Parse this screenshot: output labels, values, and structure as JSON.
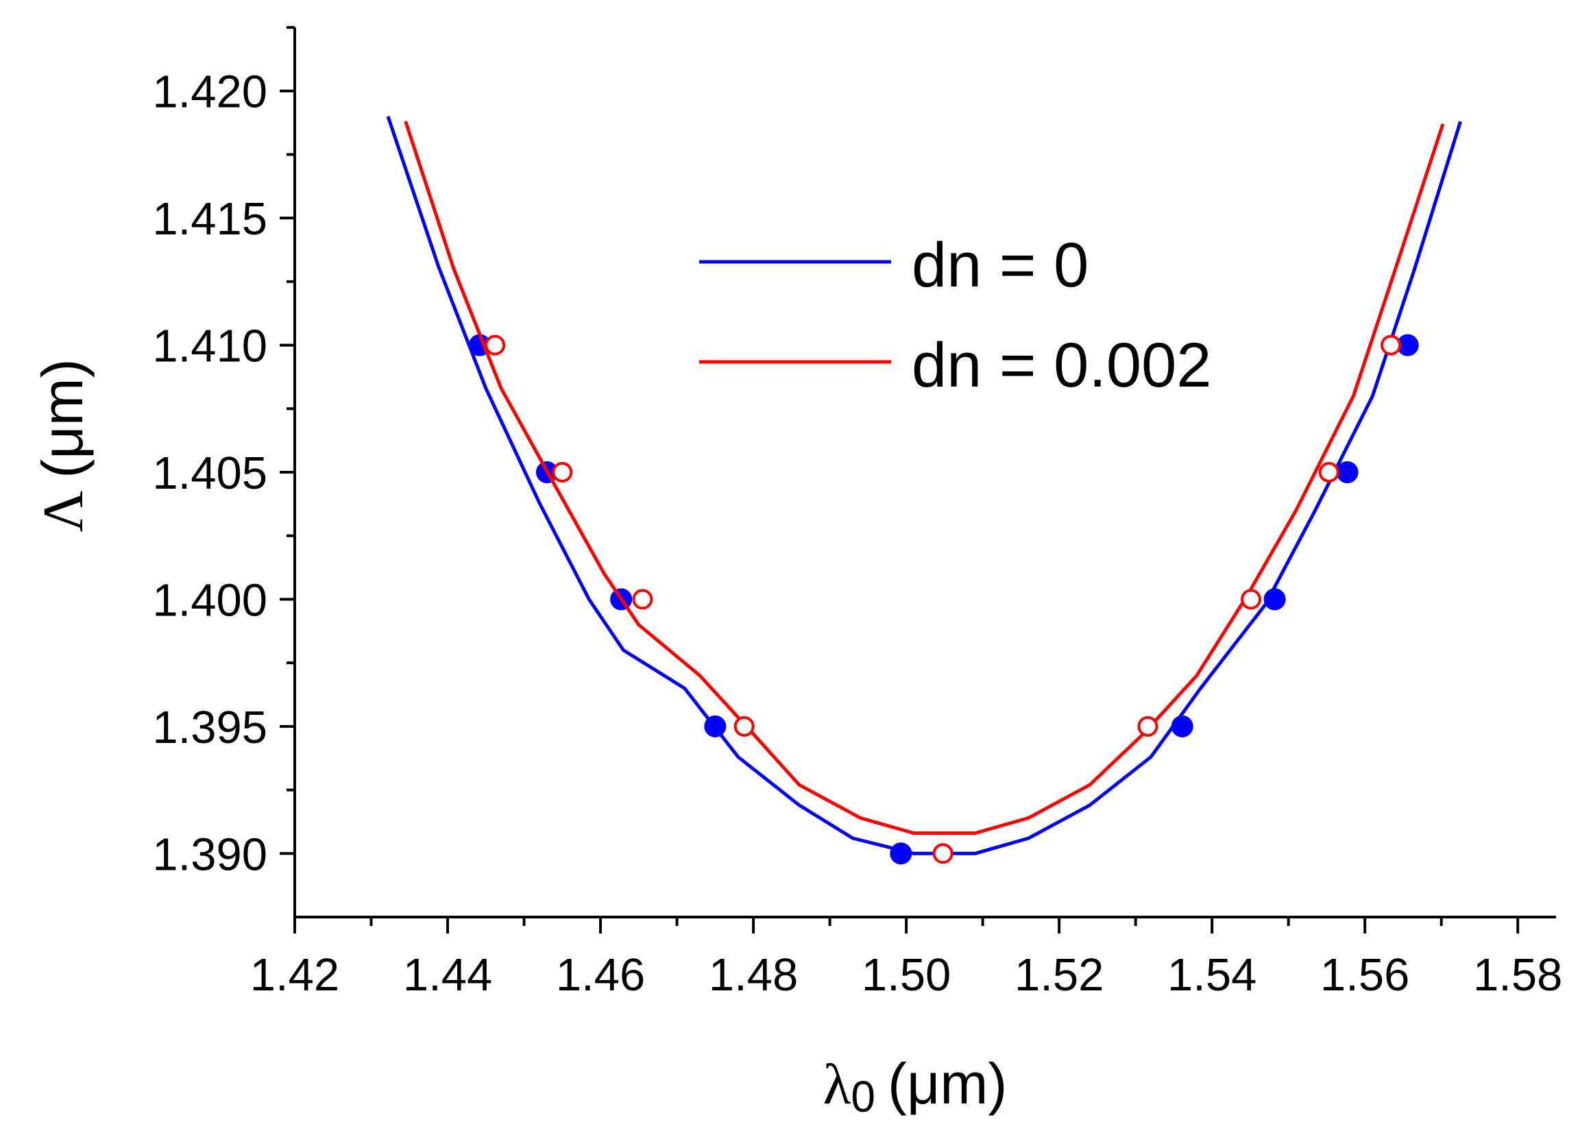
{
  "chart_data": {
    "type": "line",
    "title": "",
    "xlabel": {
      "symbol": "λ",
      "subscript": "0",
      "unit": "(μm)"
    },
    "ylabel": {
      "symbol": "Λ",
      "unit": "(μm)"
    },
    "xlim": [
      1.42,
      1.585
    ],
    "ylim": [
      1.3875,
      1.4225
    ],
    "xticks": [
      1.42,
      1.44,
      1.46,
      1.48,
      1.5,
      1.52,
      1.54,
      1.56,
      1.58
    ],
    "xtick_labels": [
      "1.42",
      "1.44",
      "1.46",
      "1.48",
      "1.50",
      "1.52",
      "1.54",
      "1.56",
      "1.58"
    ],
    "yticks": [
      1.39,
      1.395,
      1.4,
      1.405,
      1.41,
      1.415,
      1.42
    ],
    "ytick_labels": [
      "1.390",
      "1.395",
      "1.400",
      "1.405",
      "1.410",
      "1.415",
      "1.420"
    ],
    "grid": false,
    "legend_position": "top-right",
    "series": [
      {
        "name": "dn = 0",
        "color": "#0000ff",
        "marker": "filled-circle",
        "line": [
          [
            1.4322,
            1.419
          ],
          [
            1.4388,
            1.4131
          ],
          [
            1.445,
            1.4083
          ],
          [
            1.452,
            1.4038
          ],
          [
            1.4585,
            1.4
          ],
          [
            1.463,
            1.398
          ],
          [
            1.471,
            1.3965
          ],
          [
            1.478,
            1.3938
          ],
          [
            1.486,
            1.3919
          ],
          [
            1.493,
            1.3906
          ],
          [
            1.501,
            1.39
          ],
          [
            1.509,
            1.39
          ],
          [
            1.516,
            1.3906
          ],
          [
            1.524,
            1.3919
          ],
          [
            1.532,
            1.3938
          ],
          [
            1.5385,
            1.3965
          ],
          [
            1.547,
            1.3998
          ],
          [
            1.5535,
            1.4035
          ],
          [
            1.561,
            1.408
          ],
          [
            1.5665,
            1.413
          ],
          [
            1.5725,
            1.4188
          ]
        ],
        "points": [
          [
            1.4442,
            1.41
          ],
          [
            1.453,
            1.405
          ],
          [
            1.4627,
            1.4
          ],
          [
            1.475,
            1.395
          ],
          [
            1.4993,
            1.39
          ],
          [
            1.5361,
            1.395
          ],
          [
            1.5482,
            1.4
          ],
          [
            1.5577,
            1.405
          ],
          [
            1.5656,
            1.41
          ]
        ]
      },
      {
        "name": "dn = 0.002",
        "color": "#ff0000",
        "marker": "open-circle",
        "line": [
          [
            1.4345,
            1.4188
          ],
          [
            1.4408,
            1.413
          ],
          [
            1.447,
            1.4083
          ],
          [
            1.454,
            1.4045
          ],
          [
            1.4605,
            1.401
          ],
          [
            1.465,
            1.399
          ],
          [
            1.473,
            1.397
          ],
          [
            1.48,
            1.3947
          ],
          [
            1.486,
            1.3927
          ],
          [
            1.494,
            1.3914
          ],
          [
            1.501,
            1.3908
          ],
          [
            1.509,
            1.3908
          ],
          [
            1.516,
            1.3914
          ],
          [
            1.524,
            1.3927
          ],
          [
            1.531,
            1.3947
          ],
          [
            1.538,
            1.397
          ],
          [
            1.5445,
            1.4001
          ],
          [
            1.551,
            1.4035
          ],
          [
            1.5585,
            1.408
          ],
          [
            1.564,
            1.413
          ],
          [
            1.5702,
            1.4187
          ]
        ],
        "points": [
          [
            1.4462,
            1.41
          ],
          [
            1.455,
            1.405
          ],
          [
            1.4655,
            1.4
          ],
          [
            1.4788,
            1.395
          ],
          [
            1.5048,
            1.39
          ],
          [
            1.5316,
            1.395
          ],
          [
            1.5451,
            1.4
          ],
          [
            1.5553,
            1.405
          ],
          [
            1.5634,
            1.41
          ]
        ]
      }
    ]
  }
}
